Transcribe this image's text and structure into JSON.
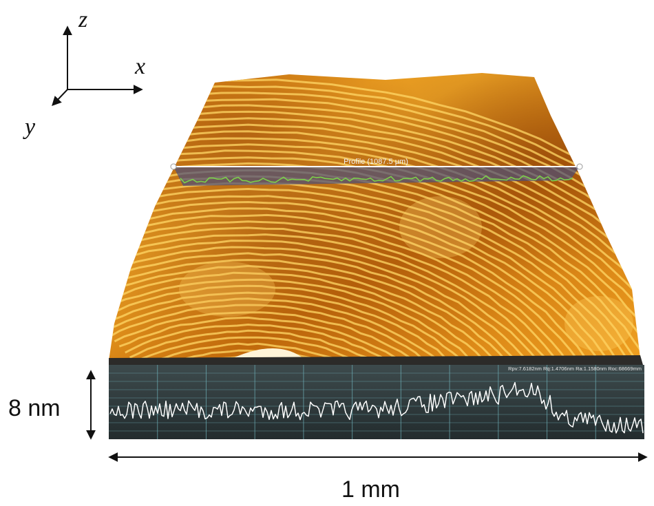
{
  "axes": {
    "z": "z",
    "x": "x",
    "y": "y"
  },
  "profile": {
    "label": "Profile (1087.5 µm)",
    "stats": "Rpv:7.6182nm Rq:1.4706nm Ra:1.1580nm Roc:68669mm"
  },
  "scale": {
    "height": "8 nm",
    "width": "1 mm"
  },
  "colors": {
    "surface_light": "#ffc640",
    "surface_mid": "#e08a10",
    "surface_dark": "#7a3106",
    "panel": "#2f3b3d",
    "grid": "#6fb0b8",
    "trace": "#ffffff",
    "profile_line": "#7cd14a"
  }
}
